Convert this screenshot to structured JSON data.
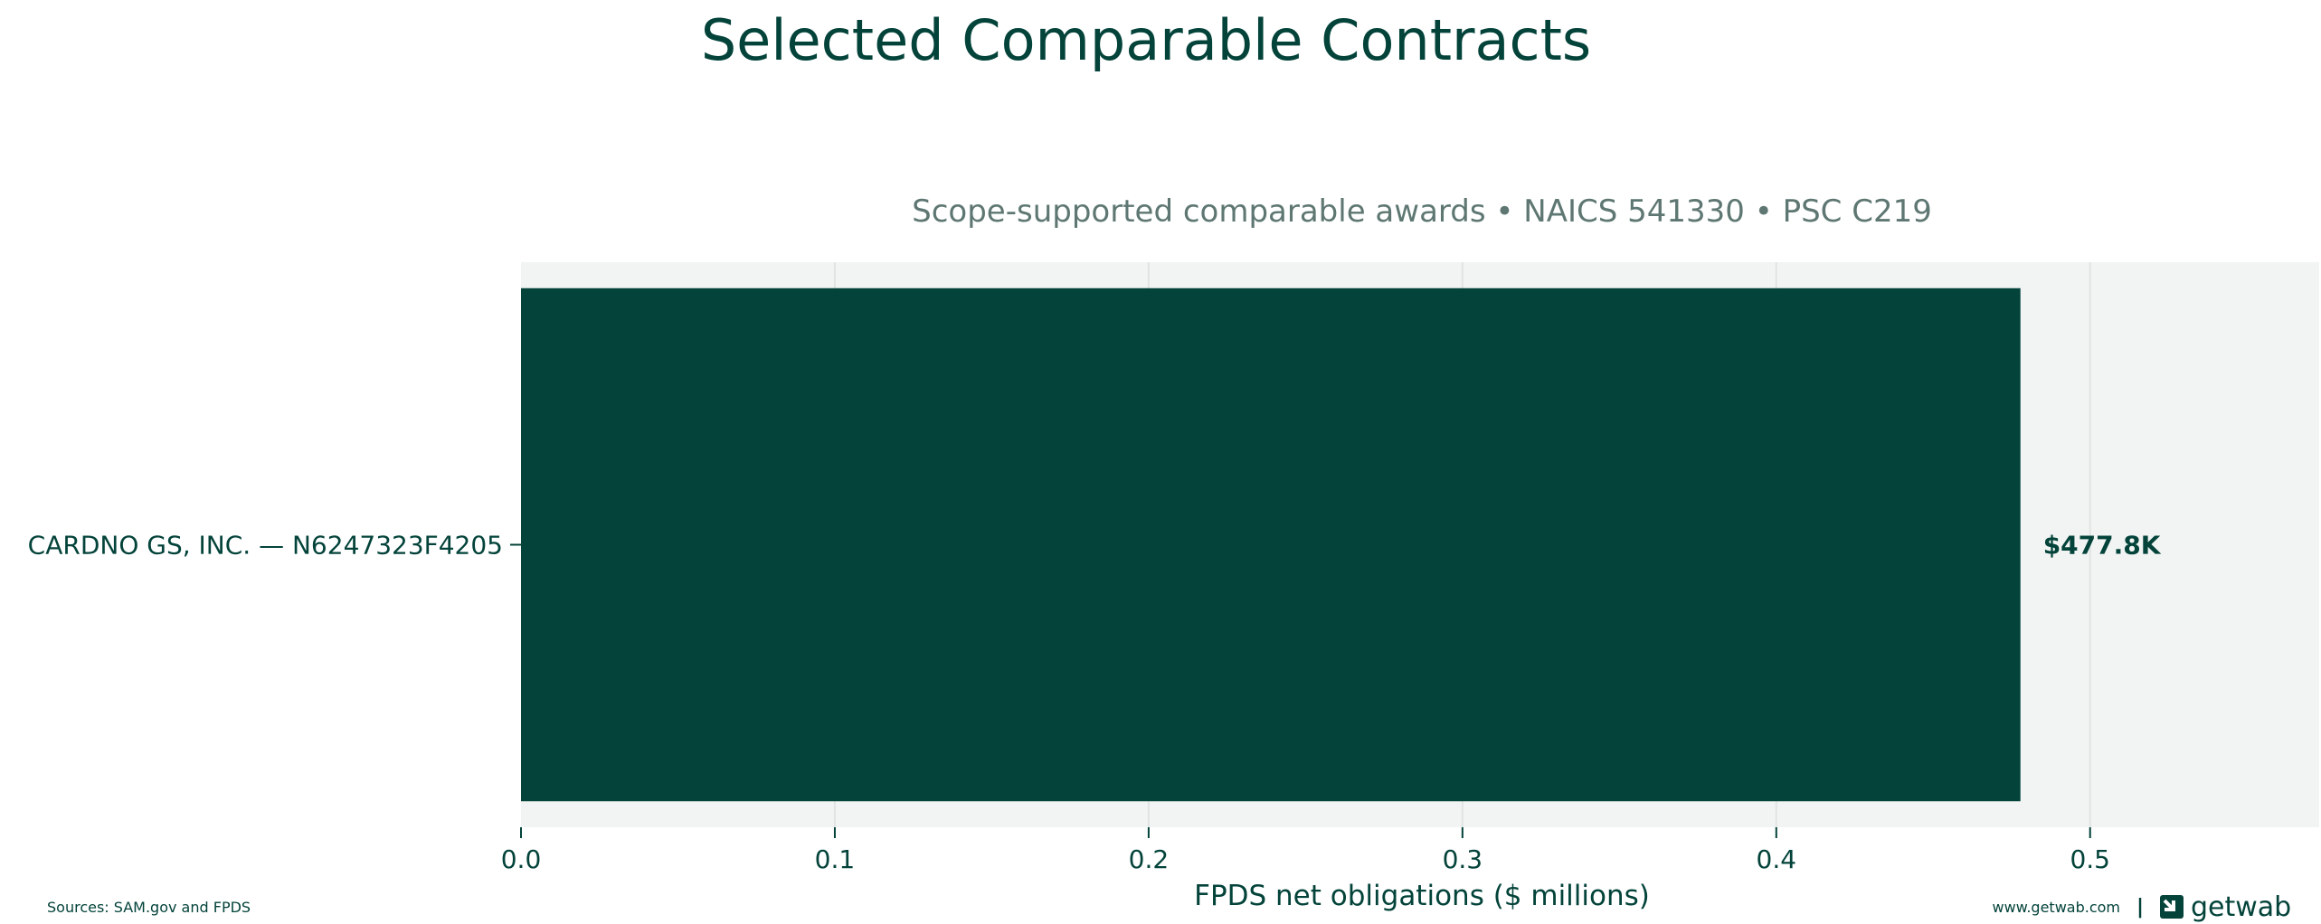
{
  "chart_data": {
    "type": "bar",
    "orientation": "horizontal",
    "title": "Selected Comparable Contracts",
    "subtitle": "Scope-supported comparable awards • NAICS 541330 • PSC C219",
    "categories": [
      "CARDNO GS, INC. — N6247323F4205"
    ],
    "values": [
      0.4778
    ],
    "data_labels": [
      "$477.8K"
    ],
    "xlabel": "FPDS net obligations ($ millions)",
    "ylabel": "",
    "xlim": [
      0,
      0.573
    ],
    "xticks": [
      0.0,
      0.1,
      0.2,
      0.3,
      0.4,
      0.5
    ],
    "xtick_labels": [
      "0.0",
      "0.1",
      "0.2",
      "0.3",
      "0.4",
      "0.5"
    ],
    "grid": true,
    "legend": "none",
    "colors": {
      "bar": "#03433a",
      "plot_background": "#f2f4f3",
      "grid": "#e0e4e2",
      "text": "#03433a",
      "subtitle": "#5e7772"
    }
  },
  "footer": {
    "sources": "Sources: SAM.gov and FPDS",
    "website": "www.getwab.com",
    "separator": "|",
    "logo_text": "getwab",
    "logo_icon": "getwab-logo-icon"
  }
}
